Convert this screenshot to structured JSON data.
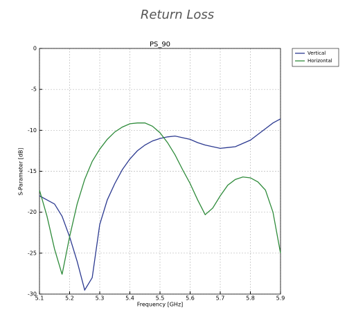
{
  "chart_data": {
    "type": "line",
    "title": "Return Loss",
    "subtitle": "PS_90",
    "x_label": "Frequency [GHz]",
    "y_label": "S-Parameter [dB]",
    "x": [
      5.1,
      5.125,
      5.15,
      5.175,
      5.2,
      5.225,
      5.25,
      5.275,
      5.3,
      5.325,
      5.35,
      5.375,
      5.4,
      5.425,
      5.45,
      5.475,
      5.5,
      5.525,
      5.55,
      5.575,
      5.6,
      5.625,
      5.65,
      5.675,
      5.7,
      5.725,
      5.75,
      5.775,
      5.8,
      5.825,
      5.85,
      5.875,
      5.9
    ],
    "series": [
      {
        "name": "Vertical",
        "color": "#2b3990",
        "values": [
          -18,
          -18.5,
          -19,
          -20.5,
          -23,
          -26,
          -29.5,
          -28,
          -21.5,
          -18.5,
          -16.5,
          -14.8,
          -13.5,
          -12.5,
          -11.8,
          -11.3,
          -11,
          -10.8,
          -10.7,
          -10.9,
          -11.1,
          -11.5,
          -11.8,
          -12,
          -12.2,
          -12.1,
          -12,
          -11.6,
          -11.2,
          -10.5,
          -9.8,
          -9.1,
          -8.6
        ]
      },
      {
        "name": "Horizontal",
        "color": "#2e8b3a",
        "values": [
          -17.3,
          -20.5,
          -24.5,
          -27.6,
          -23,
          -19,
          -16,
          -13.8,
          -12.3,
          -11.1,
          -10.2,
          -9.6,
          -9.2,
          -9.1,
          -9.1,
          -9.5,
          -10.3,
          -11.5,
          -13,
          -14.8,
          -16.5,
          -18.5,
          -20.3,
          -19.5,
          -18,
          -16.7,
          -16,
          -15.7,
          -15.8,
          -16.3,
          -17.3,
          -20,
          -25
        ]
      }
    ],
    "xlim": [
      5.1,
      5.9
    ],
    "xticks": [
      5.1,
      5.2,
      5.3,
      5.4,
      5.5,
      5.6,
      5.7,
      5.8,
      5.9
    ],
    "ylim": [
      -30,
      0
    ],
    "yticks": [
      -30,
      -25,
      -20,
      -15,
      -10,
      -5,
      0
    ],
    "grid": true,
    "legend": "outside-upper-right"
  }
}
